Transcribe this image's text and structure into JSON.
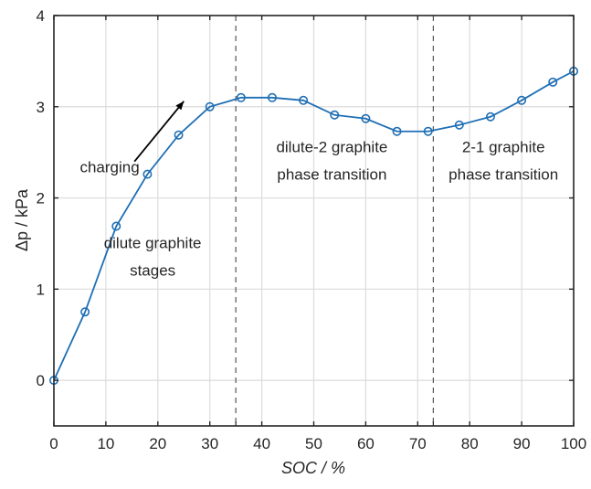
{
  "chart_data": {
    "type": "line",
    "title": "",
    "xlabel": "SOC / %",
    "ylabel": "Δp / kPa",
    "xlim": [
      0,
      100
    ],
    "ylim": [
      -0.5,
      4
    ],
    "xticks": [
      0,
      10,
      20,
      30,
      40,
      50,
      60,
      70,
      80,
      90,
      100
    ],
    "yticks": [
      0,
      1,
      2,
      3,
      4
    ],
    "grid": true,
    "series": [
      {
        "name": "Δp",
        "color": "#1f6fb4",
        "marker": "circle",
        "x": [
          0,
          6,
          12,
          18,
          24,
          30,
          36,
          42,
          48,
          54,
          60,
          66,
          72,
          78,
          84,
          90,
          96,
          100
        ],
        "y": [
          0,
          0.75,
          1.69,
          2.26,
          2.69,
          3.0,
          3.1,
          3.1,
          3.07,
          2.91,
          2.87,
          2.73,
          2.73,
          2.8,
          2.89,
          3.07,
          3.27,
          3.39
        ]
      }
    ],
    "vlines": [
      35,
      73
    ],
    "annotations": [
      {
        "text": "charging",
        "x": 5,
        "y": 2.28
      },
      {
        "text": "dilute graphite",
        "x": 19,
        "y": 1.45
      },
      {
        "text": "stages",
        "x": 19,
        "y": 1.15
      },
      {
        "text": "dilute-2 graphite",
        "x": 53.5,
        "y": 2.5
      },
      {
        "text": "phase transition",
        "x": 53.5,
        "y": 2.2
      },
      {
        "text": "2-1 graphite",
        "x": 86.5,
        "y": 2.5
      },
      {
        "text": "phase transition",
        "x": 86.5,
        "y": 2.2
      }
    ],
    "arrow": {
      "from": [
        15.5,
        2.4
      ],
      "to": [
        25,
        3.06
      ],
      "label": "charging"
    }
  }
}
